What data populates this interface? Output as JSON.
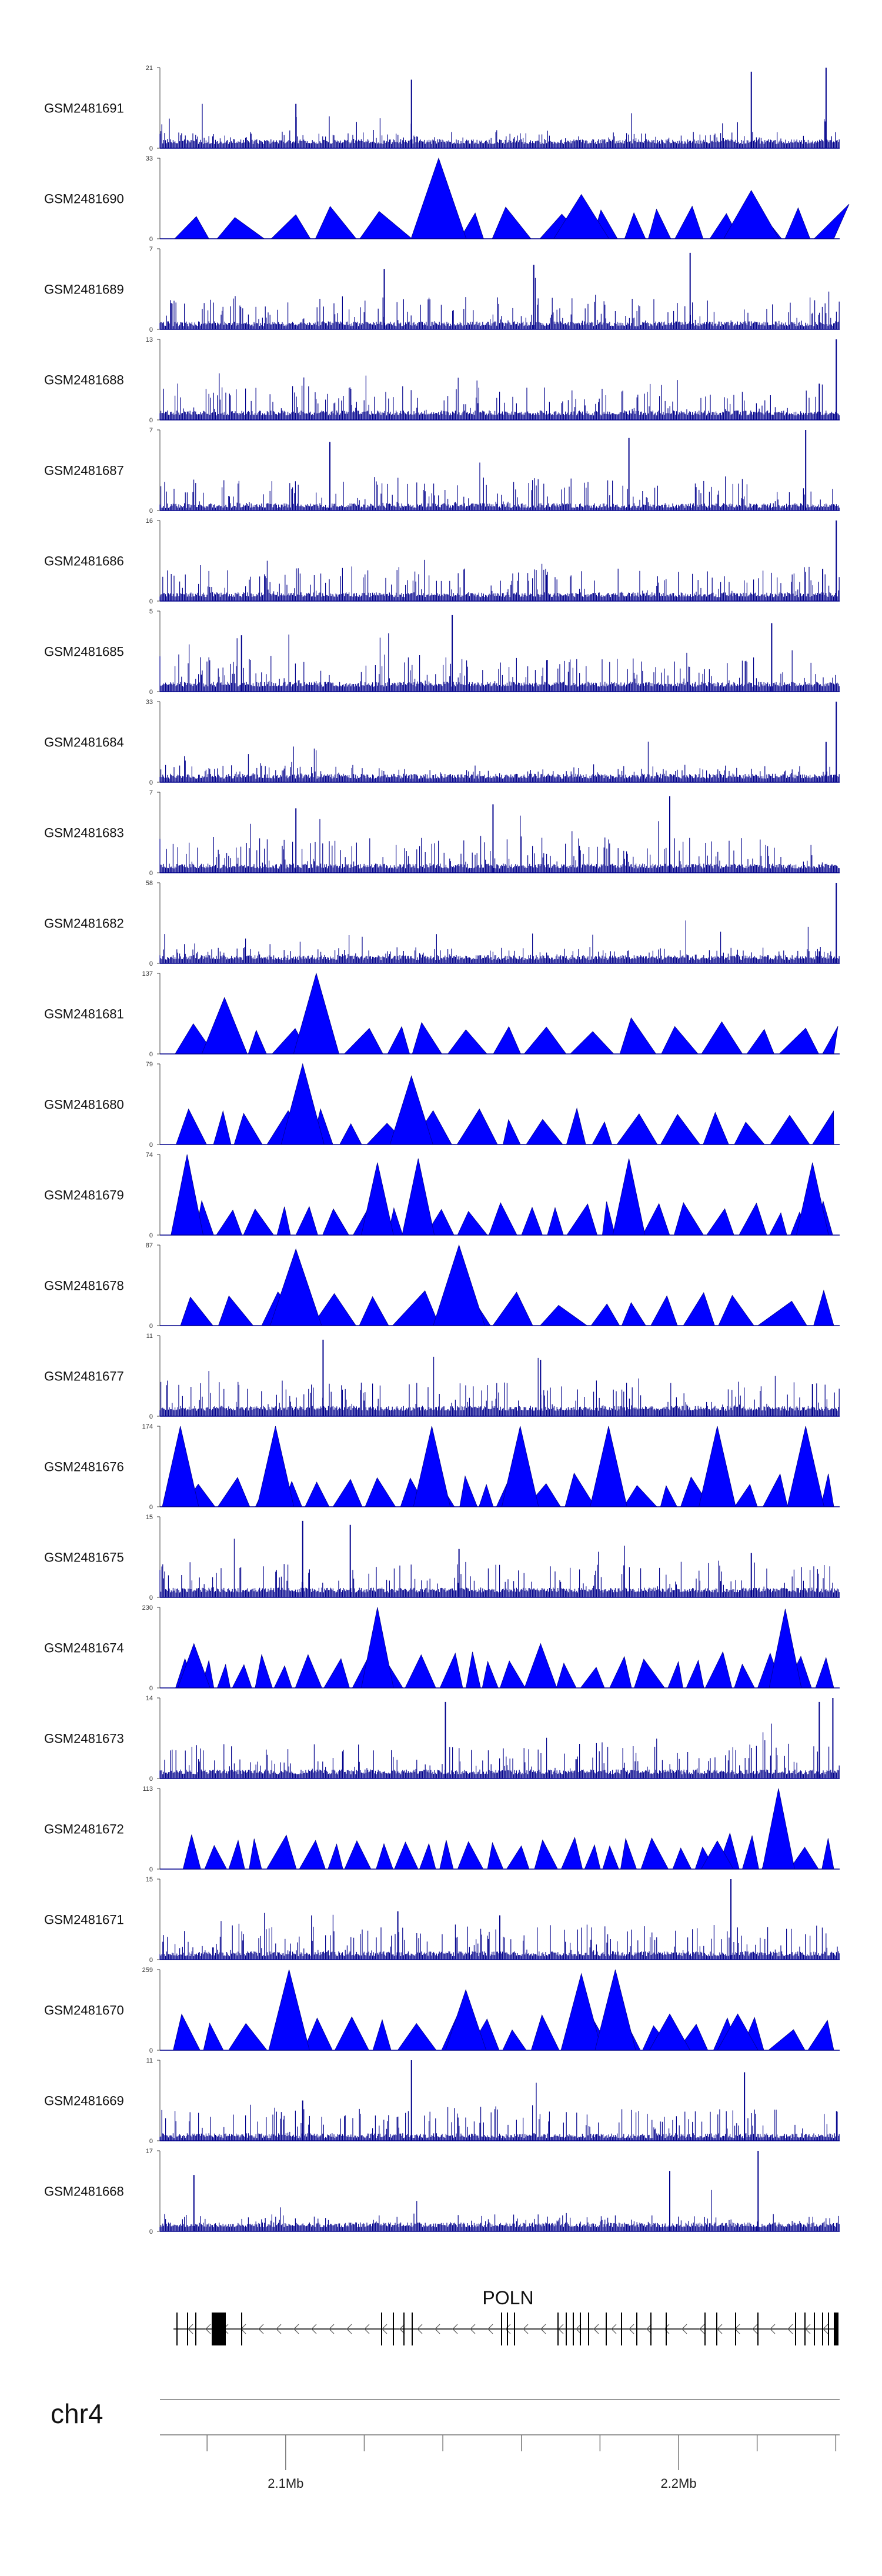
{
  "chart_data": {
    "type": "area",
    "title": "",
    "xlabel": "",
    "ylabel": "",
    "chromosome": "chr4",
    "xlim_mb": [
      2.068,
      2.241
    ],
    "x_ticks": [
      {
        "value": 2.1,
        "label": "2.1Mb"
      },
      {
        "value": 2.2,
        "label": "2.2Mb"
      }
    ],
    "minor_ticks_mb": [
      2.08,
      2.12,
      2.14,
      2.16,
      2.18,
      2.22,
      2.24
    ],
    "gene": {
      "name": "POLN",
      "strand": "-"
    },
    "series": [
      {
        "name": "GSM2481691",
        "ylim": [
          0,
          21
        ],
        "style": "dense",
        "peaks": [
          [
            0.2,
            0.55
          ],
          [
            0.37,
            0.85
          ],
          [
            0.87,
            0.95
          ],
          [
            0.98,
            1.0
          ]
        ]
      },
      {
        "name": "GSM2481690",
        "ylim": [
          0,
          33
        ],
        "style": "triangles",
        "peaks": [
          [
            0.41,
            1.0
          ],
          [
            0.62,
            0.55
          ],
          [
            0.87,
            0.6
          ]
        ]
      },
      {
        "name": "GSM2481689",
        "ylim": [
          0,
          7
        ],
        "style": "dense",
        "peaks": [
          [
            0.78,
            0.95
          ],
          [
            0.33,
            0.75
          ],
          [
            0.55,
            0.8
          ]
        ]
      },
      {
        "name": "GSM2481688",
        "ylim": [
          0,
          13
        ],
        "style": "dense",
        "peaks": [
          [
            0.995,
            1.0
          ],
          [
            0.97,
            0.45
          ]
        ]
      },
      {
        "name": "GSM2481687",
        "ylim": [
          0,
          7
        ],
        "style": "dense",
        "peaks": [
          [
            0.25,
            0.85
          ],
          [
            0.69,
            0.9
          ],
          [
            0.95,
            1.0
          ]
        ]
      },
      {
        "name": "GSM2481686",
        "ylim": [
          0,
          16
        ],
        "style": "dense",
        "peaks": [
          [
            0.995,
            1.0
          ],
          [
            0.975,
            0.4
          ]
        ]
      },
      {
        "name": "GSM2481685",
        "ylim": [
          0,
          5
        ],
        "style": "dense",
        "peaks": [
          [
            0.43,
            0.95
          ],
          [
            0.9,
            0.85
          ],
          [
            0.12,
            0.7
          ]
        ]
      },
      {
        "name": "GSM2481684",
        "ylim": [
          0,
          33
        ],
        "style": "dense",
        "peaks": [
          [
            0.995,
            1.0
          ],
          [
            0.98,
            0.5
          ]
        ]
      },
      {
        "name": "GSM2481683",
        "ylim": [
          0,
          7
        ],
        "style": "dense",
        "peaks": [
          [
            0.75,
            0.95
          ],
          [
            0.49,
            0.85
          ],
          [
            0.2,
            0.8
          ]
        ]
      },
      {
        "name": "GSM2481682",
        "ylim": [
          0,
          58
        ],
        "style": "dense",
        "peaks": [
          [
            0.995,
            1.0
          ],
          [
            0.97,
            0.15
          ]
        ]
      },
      {
        "name": "GSM2481681",
        "ylim": [
          0,
          137
        ],
        "style": "triangles",
        "peaks": [
          [
            0.23,
            1.0
          ],
          [
            0.095,
            0.7
          ]
        ]
      },
      {
        "name": "GSM2481680",
        "ylim": [
          0,
          79
        ],
        "style": "triangles",
        "peaks": [
          [
            0.21,
            1.0
          ],
          [
            0.37,
            0.85
          ]
        ]
      },
      {
        "name": "GSM2481679",
        "ylim": [
          0,
          74
        ],
        "style": "triangles",
        "peaks": [
          [
            0.04,
            1.0
          ],
          [
            0.38,
            0.95
          ],
          [
            0.32,
            0.9
          ],
          [
            0.69,
            0.95
          ],
          [
            0.96,
            0.9
          ]
        ]
      },
      {
        "name": "GSM2481678",
        "ylim": [
          0,
          87
        ],
        "style": "triangles",
        "peaks": [
          [
            0.2,
            0.95
          ],
          [
            0.44,
            1.0
          ]
        ]
      },
      {
        "name": "GSM2481677",
        "ylim": [
          0,
          11
        ],
        "style": "dense",
        "peaks": [
          [
            0.24,
            0.95
          ],
          [
            0.56,
            0.7
          ],
          [
            0.96,
            0.4
          ]
        ]
      },
      {
        "name": "GSM2481676",
        "ylim": [
          0,
          174
        ],
        "style": "triangles",
        "peaks": [
          [
            0.03,
            1.0
          ],
          [
            0.17,
            1.0
          ],
          [
            0.4,
            1.0
          ],
          [
            0.53,
            1.0
          ],
          [
            0.66,
            1.0
          ],
          [
            0.82,
            1.0
          ],
          [
            0.95,
            1.0
          ]
        ]
      },
      {
        "name": "GSM2481675",
        "ylim": [
          0,
          15
        ],
        "style": "dense",
        "peaks": [
          [
            0.21,
            0.95
          ],
          [
            0.28,
            0.9
          ],
          [
            0.44,
            0.6
          ],
          [
            0.87,
            0.55
          ]
        ]
      },
      {
        "name": "GSM2481674",
        "ylim": [
          0,
          230
        ],
        "style": "triangles",
        "peaks": [
          [
            0.32,
            1.0
          ],
          [
            0.92,
            0.98
          ],
          [
            0.56,
            0.55
          ],
          [
            0.05,
            0.55
          ]
        ]
      },
      {
        "name": "GSM2481673",
        "ylim": [
          0,
          14
        ],
        "style": "dense",
        "peaks": [
          [
            0.42,
            0.95
          ],
          [
            0.97,
            0.95
          ],
          [
            0.99,
            1.0
          ]
        ]
      },
      {
        "name": "GSM2481672",
        "ylim": [
          0,
          113
        ],
        "style": "triangles",
        "peaks": [
          [
            0.91,
            1.0
          ],
          [
            0.82,
            0.35
          ]
        ]
      },
      {
        "name": "GSM2481671",
        "ylim": [
          0,
          15
        ],
        "style": "dense",
        "peaks": [
          [
            0.84,
            1.0
          ],
          [
            0.35,
            0.6
          ],
          [
            0.5,
            0.55
          ]
        ]
      },
      {
        "name": "GSM2481670",
        "ylim": [
          0,
          259
        ],
        "style": "triangles",
        "peaks": [
          [
            0.19,
            1.0
          ],
          [
            0.45,
            0.75
          ],
          [
            0.62,
            0.95
          ],
          [
            0.67,
            1.0
          ],
          [
            0.75,
            0.45
          ],
          [
            0.85,
            0.45
          ]
        ]
      },
      {
        "name": "GSM2481669",
        "ylim": [
          0,
          11
        ],
        "style": "dense",
        "peaks": [
          [
            0.37,
            1.0
          ],
          [
            0.86,
            0.85
          ],
          [
            0.21,
            0.5
          ]
        ]
      },
      {
        "name": "GSM2481668",
        "ylim": [
          0,
          17
        ],
        "style": "dense",
        "peaks": [
          [
            0.88,
            1.0
          ],
          [
            0.75,
            0.75
          ],
          [
            0.05,
            0.7
          ]
        ]
      }
    ]
  },
  "colors": {
    "signal": "#0000ff",
    "signal_dark": "#00008b",
    "axis": "#444444",
    "gene": "#000000"
  }
}
